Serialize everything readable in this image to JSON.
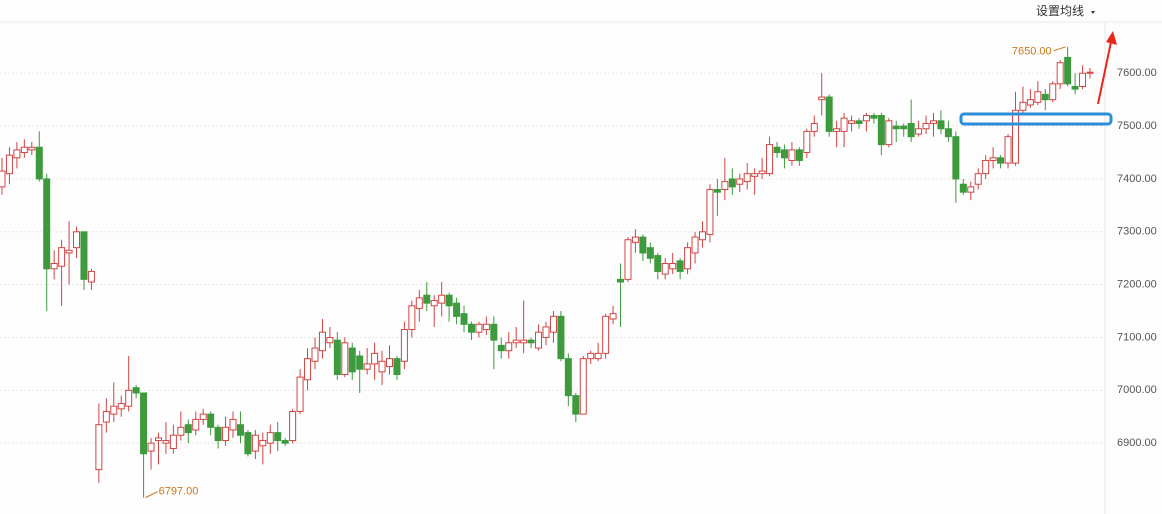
{
  "chart_data": {
    "type": "candlestick",
    "menu": "设置均线",
    "annotations": [
      "7650.00",
      "6797.00"
    ],
    "up_color": "#d04545",
    "down_color": "#3d9a3d",
    "ylim": [
      6766,
      7697
    ],
    "yticks": [
      {
        "value": 6900,
        "label": "6900.00"
      },
      {
        "value": 7000,
        "label": "7000.00"
      },
      {
        "value": 7100,
        "label": "7100.00"
      },
      {
        "value": 7200,
        "label": "7200.00"
      },
      {
        "value": 7300,
        "label": "7300.00"
      },
      {
        "value": 7400,
        "label": "7400.00"
      },
      {
        "value": 7500,
        "label": "7500.00"
      },
      {
        "value": 7600,
        "label": "7600.00"
      }
    ],
    "grid": true,
    "open": [
      7385,
      7410,
      7440,
      7450,
      7455,
      7460,
      7400,
      7230,
      7235,
      7260,
      7270,
      7300,
      7205,
      6850,
      6940,
      6955,
      6965,
      6970,
      7005,
      6995,
      6885,
      6905,
      6900,
      6890,
      6915,
      6935,
      6925,
      6945,
      6955,
      6930,
      6905,
      6925,
      6935,
      6920,
      6885,
      6895,
      6900,
      6920,
      6905,
      6905,
      6960,
      7020,
      7055,
      7075,
      7090,
      7095,
      7030,
      7080,
      7065,
      7040,
      7050,
      7035,
      7045,
      7060,
      7055,
      7115,
      7155,
      7180,
      7160,
      7165,
      7180,
      7165,
      7145,
      7125,
      7110,
      7115,
      7125,
      7085,
      7075,
      7090,
      7090,
      7095,
      7080,
      7100,
      7110,
      7140,
      7060,
      6990,
      6955,
      7060,
      7060,
      7070,
      7135,
      7210,
      7210,
      7280,
      7290,
      7270,
      7255,
      7220,
      7230,
      7245,
      7230,
      7260,
      7285,
      7295,
      7380,
      7380,
      7400,
      7390,
      7395,
      7405,
      7410,
      7410,
      7460,
      7455,
      7435,
      7455,
      7450,
      7490,
      7550,
      7555,
      7490,
      7490,
      7505,
      7510,
      7510,
      7520,
      7520,
      7465,
      7500,
      7500,
      7505,
      7485,
      7495,
      7505,
      7510,
      7495,
      7480,
      7390,
      7375,
      7390,
      7410,
      7435,
      7440,
      7430,
      7430,
      7530,
      7540,
      7545,
      7560,
      7550,
      7580,
      7630,
      7575,
      7575,
      7600
    ],
    "high": [
      7440,
      7460,
      7470,
      7475,
      7470,
      7490,
      7410,
      7265,
      7285,
      7320,
      7310,
      7300,
      7230,
      6975,
      6985,
      7015,
      6990,
      7065,
      7010,
      6995,
      6910,
      6920,
      6940,
      6935,
      6960,
      6945,
      6960,
      6965,
      6960,
      6935,
      6950,
      6960,
      6960,
      6925,
      6925,
      6920,
      6935,
      6940,
      6910,
      6965,
      7040,
      7080,
      7100,
      7135,
      7120,
      7110,
      7100,
      7090,
      7075,
      7080,
      7090,
      7075,
      7085,
      7065,
      7130,
      7170,
      7190,
      7205,
      7180,
      7205,
      7185,
      7175,
      7160,
      7130,
      7130,
      7140,
      7140,
      7100,
      7110,
      7120,
      7170,
      7100,
      7125,
      7130,
      7150,
      7150,
      7070,
      6995,
      7065,
      7075,
      7090,
      7145,
      7160,
      7240,
      7290,
      7305,
      7295,
      7280,
      7260,
      7250,
      7260,
      7250,
      7280,
      7300,
      7320,
      7390,
      7400,
      7440,
      7420,
      7410,
      7430,
      7420,
      7440,
      7480,
      7470,
      7465,
      7470,
      7460,
      7495,
      7520,
      7600,
      7560,
      7510,
      7525,
      7520,
      7515,
      7525,
      7525,
      7525,
      7515,
      7510,
      7505,
      7550,
      7510,
      7520,
      7525,
      7530,
      7510,
      7490,
      7400,
      7395,
      7420,
      7445,
      7460,
      7445,
      7485,
      7565,
      7575,
      7570,
      7585,
      7570,
      7585,
      7625,
      7650,
      7600,
      7615,
      7610
    ],
    "low": [
      7370,
      7390,
      7420,
      7440,
      7445,
      7395,
      7150,
      7210,
      7160,
      7200,
      7250,
      7190,
      7190,
      6825,
      6920,
      6940,
      6950,
      6960,
      6985,
      6797,
      6850,
      6860,
      6880,
      6880,
      6905,
      6900,
      6915,
      6935,
      6915,
      6890,
      6895,
      6910,
      6900,
      6875,
      6870,
      6860,
      6880,
      6885,
      6895,
      6900,
      6955,
      7000,
      7040,
      7060,
      7080,
      7020,
      7025,
      7020,
      6995,
      7030,
      7020,
      7010,
      7030,
      7020,
      7040,
      7100,
      7130,
      7150,
      7120,
      7140,
      7130,
      7125,
      7110,
      7095,
      7100,
      7105,
      7040,
      7060,
      7060,
      7080,
      7070,
      7080,
      7075,
      7085,
      7090,
      7055,
      6970,
      6940,
      6955,
      7050,
      7055,
      7060,
      7125,
      7120,
      7205,
      7260,
      7245,
      7240,
      7210,
      7210,
      7220,
      7210,
      7220,
      7240,
      7270,
      7280,
      7330,
      7360,
      7370,
      7375,
      7380,
      7370,
      7400,
      7405,
      7440,
      7420,
      7425,
      7425,
      7440,
      7480,
      7520,
      7480,
      7460,
      7460,
      7490,
      7495,
      7490,
      7505,
      7445,
      7460,
      7470,
      7480,
      7470,
      7480,
      7485,
      7480,
      7485,
      7470,
      7355,
      7370,
      7360,
      7380,
      7400,
      7420,
      7420,
      7420,
      7425,
      7520,
      7535,
      7540,
      7530,
      7545,
      7570,
      7575,
      7560,
      7570,
      7590
    ],
    "close": [
      7415,
      7445,
      7455,
      7460,
      7460,
      7400,
      7230,
      7240,
      7270,
      7265,
      7300,
      7210,
      7225,
      6935,
      6960,
      6970,
      6975,
      7000,
      6995,
      6880,
      6900,
      6910,
      6905,
      6915,
      6930,
      6920,
      6945,
      6955,
      6930,
      6905,
      6930,
      6945,
      6915,
      6880,
      6915,
      6905,
      6920,
      6905,
      6900,
      6960,
      7025,
      7060,
      7080,
      7110,
      7100,
      7030,
      7090,
      7035,
      7040,
      7050,
      7070,
      7055,
      7060,
      7030,
      7115,
      7160,
      7175,
      7165,
      7170,
      7180,
      7160,
      7140,
      7125,
      7110,
      7125,
      7125,
      7095,
      7075,
      7090,
      7095,
      7095,
      7090,
      7110,
      7120,
      7140,
      7060,
      6990,
      6955,
      7060,
      7070,
      7070,
      7140,
      7145,
      7205,
      7285,
      7290,
      7260,
      7250,
      7225,
      7240,
      7240,
      7225,
      7270,
      7290,
      7300,
      7380,
      7375,
      7395,
      7385,
      7400,
      7410,
      7410,
      7415,
      7465,
      7450,
      7440,
      7455,
      7435,
      7490,
      7505,
      7555,
      7490,
      7495,
      7515,
      7510,
      7505,
      7520,
      7515,
      7465,
      7510,
      7495,
      7495,
      7480,
      7495,
      7505,
      7510,
      7495,
      7480,
      7400,
      7375,
      7385,
      7410,
      7435,
      7440,
      7430,
      7480,
      7530,
      7545,
      7550,
      7565,
      7550,
      7580,
      7620,
      7580,
      7570,
      7600,
      7602
    ]
  }
}
